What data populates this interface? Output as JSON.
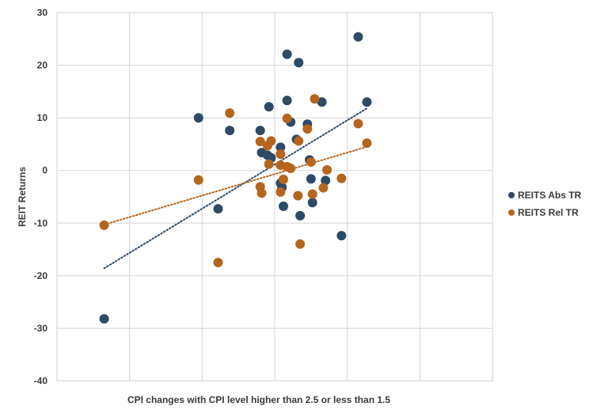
{
  "chart_data": {
    "type": "scatter",
    "xlabel": "CPI changes with CPI level higher than 2.5 or less than 1.5",
    "ylabel": "REIT Returns",
    "xlim": [
      -3,
      3
    ],
    "ylim": [
      -40,
      30
    ],
    "y_ticks": [
      "30",
      "20",
      "10",
      "0",
      "-10",
      "-20",
      "-30",
      "-40"
    ],
    "x_gridlines": [
      -2,
      -1,
      0,
      1,
      2
    ],
    "grid": true,
    "legend_position": "right",
    "series": [
      {
        "name": "REITS Abs TR",
        "color": "#2d4a66",
        "points": [
          [
            -2.35,
            -28.2
          ],
          [
            -1.05,
            10.0
          ],
          [
            -0.78,
            -7.3
          ],
          [
            -0.62,
            7.6
          ],
          [
            -0.2,
            7.6
          ],
          [
            -0.18,
            3.4
          ],
          [
            -0.08,
            12.1
          ],
          [
            -0.1,
            2.9
          ],
          [
            -0.05,
            2.4
          ],
          [
            0.08,
            4.4
          ],
          [
            0.08,
            -2.4
          ],
          [
            0.1,
            -3.2
          ],
          [
            0.12,
            -6.8
          ],
          [
            0.17,
            13.3
          ],
          [
            0.22,
            9.2
          ],
          [
            0.17,
            22.1
          ],
          [
            0.3,
            5.9
          ],
          [
            0.33,
            20.5
          ],
          [
            0.35,
            -8.6
          ],
          [
            0.45,
            8.8
          ],
          [
            0.48,
            2.0
          ],
          [
            0.5,
            -1.6
          ],
          [
            0.52,
            -6.1
          ],
          [
            0.65,
            13.0
          ],
          [
            0.7,
            -1.9
          ],
          [
            0.92,
            -12.4
          ],
          [
            1.15,
            25.4
          ],
          [
            1.27,
            13.0
          ]
        ],
        "trendline": [
          [
            -2.35,
            -18.6
          ],
          [
            1.27,
            11.8
          ]
        ]
      },
      {
        "name": "REITS Rel TR",
        "color": "#b5651d",
        "points": [
          [
            -2.35,
            -10.4
          ],
          [
            -1.05,
            -1.8
          ],
          [
            -0.78,
            -17.5
          ],
          [
            -0.62,
            10.9
          ],
          [
            -0.2,
            5.5
          ],
          [
            -0.2,
            -3.1
          ],
          [
            -0.18,
            -4.3
          ],
          [
            -0.1,
            4.7
          ],
          [
            -0.08,
            1.2
          ],
          [
            -0.05,
            5.6
          ],
          [
            0.08,
            3.1
          ],
          [
            0.08,
            1.0
          ],
          [
            0.08,
            -4.1
          ],
          [
            0.12,
            -1.7
          ],
          [
            0.17,
            0.7
          ],
          [
            0.17,
            9.9
          ],
          [
            0.22,
            0.4
          ],
          [
            0.33,
            5.6
          ],
          [
            0.32,
            -4.8
          ],
          [
            0.35,
            -14.0
          ],
          [
            0.45,
            7.9
          ],
          [
            0.5,
            1.6
          ],
          [
            0.52,
            -4.5
          ],
          [
            0.55,
            13.6
          ],
          [
            0.67,
            -3.3
          ],
          [
            0.72,
            0.1
          ],
          [
            0.92,
            -1.5
          ],
          [
            1.15,
            8.9
          ],
          [
            1.27,
            5.2
          ]
        ],
        "trendline": [
          [
            -2.35,
            -10.3
          ],
          [
            1.27,
            4.5
          ]
        ]
      }
    ]
  }
}
